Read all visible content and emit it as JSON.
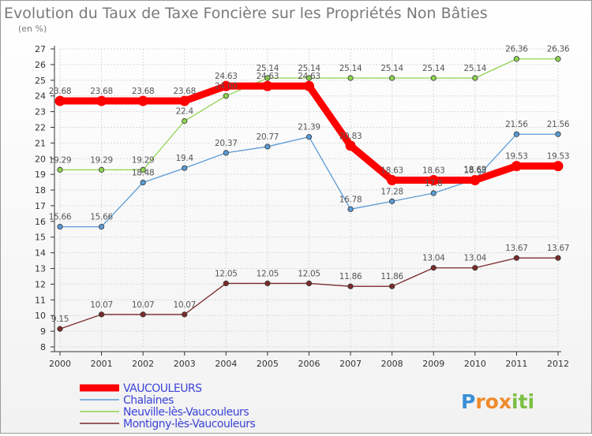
{
  "chart_data": {
    "type": "line",
    "title": "Evolution du Taux de Taxe Foncière sur les Propriétés Non Bâties",
    "unit_label": "(en %)",
    "x": [
      "2000",
      "2001",
      "2002",
      "2003",
      "2004",
      "2005",
      "2006",
      "2007",
      "2008",
      "2009",
      "2010",
      "2011",
      "2012"
    ],
    "ylim": [
      8,
      27
    ],
    "yticks": [
      8,
      9,
      10,
      11,
      12,
      13,
      14,
      15,
      16,
      17,
      18,
      19,
      20,
      21,
      22,
      23,
      24,
      25,
      26,
      27
    ],
    "series": [
      {
        "name": "VAUCOULEURS",
        "color": "#ff0000",
        "values": [
          23.68,
          23.68,
          23.68,
          23.68,
          24.63,
          24.63,
          24.63,
          20.83,
          18.63,
          18.63,
          18.63,
          19.53,
          19.53
        ],
        "labels": [
          "23.68",
          "23.68",
          "23.68",
          "23.68",
          "24.63",
          "24.63",
          "24.63",
          "20.83",
          "18.63",
          "18.63",
          "18.63",
          "19.53",
          "19.53"
        ]
      },
      {
        "name": "Chalaines",
        "color": "#5b9bd5",
        "values": [
          15.66,
          15.66,
          18.48,
          19.4,
          20.37,
          20.77,
          21.39,
          16.78,
          17.28,
          17.8,
          18.69,
          21.56,
          21.56
        ],
        "labels": [
          "15.66",
          "15.66",
          "18.48",
          "19.4",
          "20.37",
          "20.77",
          "21.39",
          "16.78",
          "17.28",
          "17.8",
          "18.69",
          "21.56",
          "21.56"
        ]
      },
      {
        "name": "Neuville-lès-Vaucouleurs",
        "color": "#8ed44f",
        "values": [
          19.29,
          19.29,
          19.29,
          22.4,
          24.0,
          25.14,
          25.14,
          25.14,
          25.14,
          25.14,
          25.14,
          26.36,
          26.36
        ],
        "labels": [
          "19.29",
          "19.29",
          "19.29",
          "22.4",
          "24.00",
          "25.14",
          "25.14",
          "25.14",
          "25.14",
          "25.14",
          "25.14",
          "26.36",
          "26.36"
        ]
      },
      {
        "name": "Montigny-lès-Vaucouleurs",
        "color": "#7b2b2b",
        "values": [
          9.15,
          10.07,
          10.07,
          10.07,
          12.05,
          12.05,
          12.05,
          11.86,
          11.86,
          13.04,
          13.04,
          13.67,
          13.67
        ],
        "labels": [
          "9.15",
          "10.07",
          "10.07",
          "10.07",
          "12.05",
          "12.05",
          "12.05",
          "11.86",
          "11.86",
          "13.04",
          "13.04",
          "13.67",
          "13.67"
        ]
      }
    ],
    "legend_position": "bottom-left",
    "grid": true
  },
  "logo": {
    "text": "Proxiti",
    "letters": [
      "P",
      "r",
      "o",
      "x",
      "i",
      "t",
      "i"
    ],
    "colors": [
      "#3a8fd6",
      "#f08a2b",
      "#f08a2b",
      "#f08a2b",
      "#7bc043",
      "#7bc043",
      "#7bc043"
    ]
  }
}
